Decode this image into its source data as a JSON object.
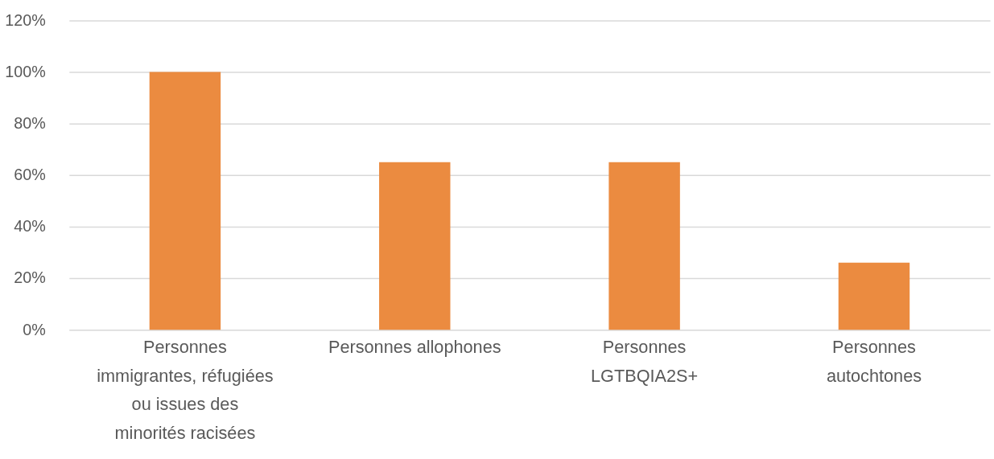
{
  "chart_data": {
    "type": "bar",
    "categories": [
      "Personnes\nimmigrantes, réfugiées\nou issues des\nminorités racisées",
      "Personnes allophones",
      "Personnes\nLGTBQIA2S+",
      "Personnes\nautochtones"
    ],
    "values": [
      100,
      65,
      65,
      26
    ],
    "color": "#eb8b40",
    "ylim": [
      0,
      120
    ],
    "yticks": [
      {
        "value": 0,
        "label": "0%"
      },
      {
        "value": 20,
        "label": "20%"
      },
      {
        "value": 40,
        "label": "40%"
      },
      {
        "value": 60,
        "label": "60%"
      },
      {
        "value": 80,
        "label": "80%"
      },
      {
        "value": 100,
        "label": "100%"
      },
      {
        "value": 120,
        "label": "120%"
      }
    ],
    "grid": "y"
  }
}
